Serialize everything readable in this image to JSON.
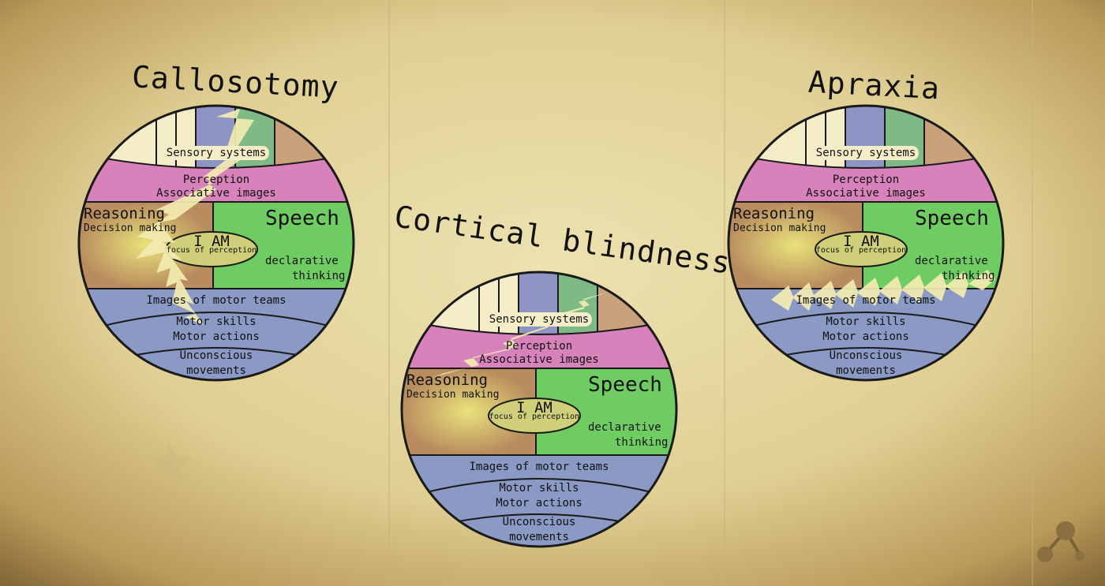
{
  "titles": {
    "callosotomy": "Callosotomy",
    "cortical_blindness": "Cortical blindness",
    "apraxia": "Apraxia"
  },
  "labels": {
    "sensory": "Sensory systems",
    "perception": "Perception",
    "associative": "Associative images",
    "reasoning": "Reasoning",
    "decision": "Decision making",
    "speech": "Speech",
    "declarative": "declarative",
    "thinking": "thinking",
    "i_am": "I AM",
    "focus": "focus of perception",
    "images_motor": "Images of motor teams",
    "motor_skills": "Motor skills",
    "motor_actions": "Motor actions",
    "unconscious": "Unconscious",
    "movements": "movements"
  },
  "colors": {
    "background": "#e2d49a",
    "sensory_cream": "#f5ecc8",
    "sensory_blue": "#8e95c4",
    "sensory_green": "#7fba86",
    "sensory_tan": "#c9a27c",
    "perception_pink": "#d882bb",
    "reasoning_brown": "#b88c5e",
    "speech_green": "#6fcc62",
    "motor_blue": "#8a9ac4",
    "lightning": "#f2ecb0",
    "outline": "#1a1a1a"
  },
  "icons": {
    "lightning": "lightning-bolt-icon",
    "logo": "molecule-logo-icon"
  }
}
